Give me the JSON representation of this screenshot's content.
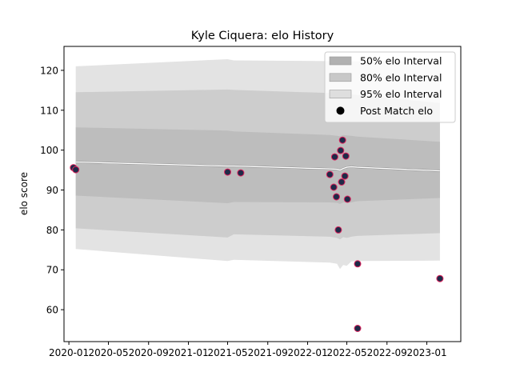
{
  "chart_data": {
    "type": "scatter",
    "title": "Kyle Ciquera: elo History",
    "xlabel": "",
    "ylabel": "elo score",
    "xlim": [
      "2019-12-17",
      "2023-04-15"
    ],
    "ylim": [
      52,
      126
    ],
    "x_ticks": [
      "2020-01",
      "2020-05",
      "2020-09",
      "2021-01",
      "2021-05",
      "2021-09",
      "2022-01",
      "2022-05",
      "2022-09",
      "2023-01"
    ],
    "y_ticks": [
      60,
      70,
      80,
      90,
      100,
      110,
      120
    ],
    "grid": false,
    "legend_position": "top-right",
    "legend": [
      {
        "label": "50% elo Interval",
        "color": "#b1b1b1",
        "kind": "patch"
      },
      {
        "label": "80% elo Interval",
        "color": "#c8c8c8",
        "kind": "patch"
      },
      {
        "label": "95% elo Interval",
        "color": "#dedede",
        "kind": "patch"
      },
      {
        "label": "Post Match elo",
        "color": "#000000",
        "kind": "marker"
      }
    ],
    "bands": {
      "x": [
        "2020-01-22",
        "2021-05-01",
        "2021-05-20",
        "2022-03-10",
        "2022-04-01",
        "2022-04-10",
        "2022-04-20",
        "2022-05-01",
        "2022-05-15",
        "2022-06-01",
        "2023-02-10"
      ],
      "p95_upper": [
        121,
        122.8,
        122.5,
        122.3,
        122.2,
        122.2,
        122.2,
        122.2,
        122.2,
        122.2,
        122.2
      ],
      "p80_upper": [
        114.5,
        115.2,
        115.1,
        114.3,
        114.1,
        114.0,
        114.2,
        114.1,
        114.0,
        113.8,
        111.8
      ],
      "p50_upper": [
        105.7,
        104.9,
        104.7,
        103.8,
        103.6,
        103.5,
        103.8,
        103.7,
        103.6,
        103.4,
        102.1
      ],
      "p50_lower": [
        88.6,
        86.7,
        87.0,
        86.9,
        86.8,
        86.5,
        86.9,
        86.8,
        86.9,
        87.2,
        88.0
      ],
      "p80_lower": [
        80.4,
        78.1,
        78.9,
        78.3,
        78.0,
        77.6,
        78.2,
        78.0,
        78.3,
        78.5,
        79.2
      ],
      "p95_lower": [
        75.2,
        72.2,
        72.5,
        71.8,
        71.5,
        70.2,
        71.2,
        71.0,
        72.1,
        72.2,
        72.3
      ],
      "mean": [
        97.0,
        96.0,
        96.0,
        95.3,
        95.2,
        95.0,
        95.4,
        95.7,
        95.8,
        95.7,
        94.8
      ]
    },
    "points": [
      {
        "x": "2020-01-15",
        "y": 95.6
      },
      {
        "x": "2020-01-22",
        "y": 95.1
      },
      {
        "x": "2021-05-01",
        "y": 94.5
      },
      {
        "x": "2021-06-10",
        "y": 94.3
      },
      {
        "x": "2022-03-10",
        "y": 93.9
      },
      {
        "x": "2022-03-22",
        "y": 90.7
      },
      {
        "x": "2022-03-25",
        "y": 98.3
      },
      {
        "x": "2022-03-30",
        "y": 88.3
      },
      {
        "x": "2022-04-05",
        "y": 80.0
      },
      {
        "x": "2022-04-12",
        "y": 99.9
      },
      {
        "x": "2022-04-15",
        "y": 92.0
      },
      {
        "x": "2022-04-18",
        "y": 102.5
      },
      {
        "x": "2022-04-25",
        "y": 93.5
      },
      {
        "x": "2022-04-28",
        "y": 98.5
      },
      {
        "x": "2022-05-03",
        "y": 87.7
      },
      {
        "x": "2022-06-03",
        "y": 71.5
      },
      {
        "x": "2022-06-03",
        "y": 55.3
      },
      {
        "x": "2023-02-10",
        "y": 67.8
      }
    ],
    "colors": {
      "p95": "#e3e3e3",
      "p80": "#cdcdcd",
      "p50": "#bdbdbd",
      "mean": "#ffffff",
      "mean_shadow": "#7f7f7f",
      "point_fill": "#1f2a48",
      "point_edge": "#e0245e"
    }
  }
}
